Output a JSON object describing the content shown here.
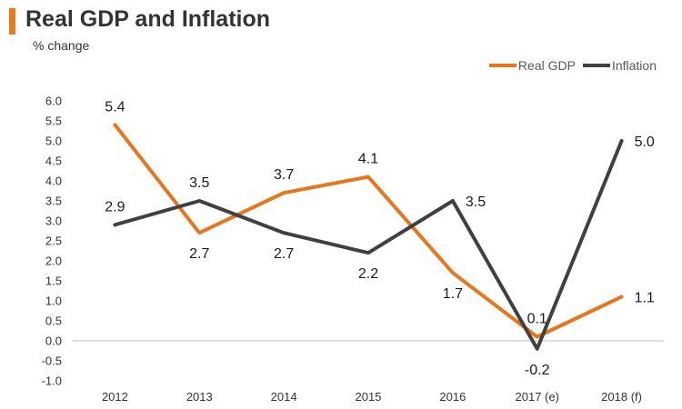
{
  "colors": {
    "accent": "#ec7a1c",
    "real_gdp": "#e8761e",
    "inflation": "#404040"
  },
  "chart_data": {
    "type": "line",
    "title": "Real GDP and Inflation",
    "subtitle": "% change",
    "xlabel": "",
    "ylabel": "",
    "categories": [
      "2012",
      "2013",
      "2014",
      "2015",
      "2016",
      "2017 (e)",
      "2018 (f)"
    ],
    "y_ticks": [
      "6.0",
      "5.5",
      "5.0",
      "4.5",
      "4.0",
      "3.5",
      "3.0",
      "2.5",
      "2.0",
      "1.5",
      "1.0",
      "0.5",
      "0.0",
      "-0.5",
      "-1.0"
    ],
    "ylim": [
      -1.0,
      6.0
    ],
    "grid": false,
    "legend": "top-right",
    "series": [
      {
        "name": "Real GDP",
        "values": [
          5.4,
          2.7,
          3.7,
          4.1,
          1.7,
          0.1,
          1.1
        ],
        "labels": [
          "5.4",
          "2.7",
          "3.7",
          "4.1",
          "1.7",
          "0.1",
          "1.1"
        ]
      },
      {
        "name": "Inflation",
        "values": [
          2.9,
          3.5,
          2.7,
          2.2,
          3.5,
          -0.2,
          5.0
        ],
        "labels": [
          "2.9",
          "3.5",
          "2.7",
          "2.2",
          "3.5",
          "-0.2",
          "5.0"
        ]
      }
    ]
  }
}
